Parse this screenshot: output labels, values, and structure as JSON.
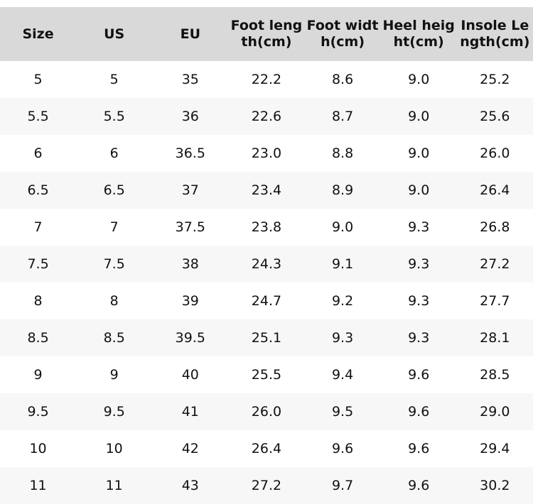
{
  "table": {
    "header": [
      "Size",
      "US",
      "EU",
      "Foot length(cm)",
      "Foot width(cm)",
      "Heel height(cm)",
      "Insole Length(cm)"
    ],
    "rows": [
      [
        "5",
        "5",
        "35",
        "22.2",
        "8.6",
        "9.0",
        "25.2"
      ],
      [
        "5.5",
        "5.5",
        "36",
        "22.6",
        "8.7",
        "9.0",
        "25.6"
      ],
      [
        "6",
        "6",
        "36.5",
        "23.0",
        "8.8",
        "9.0",
        "26.0"
      ],
      [
        "6.5",
        "6.5",
        "37",
        "23.4",
        "8.9",
        "9.0",
        "26.4"
      ],
      [
        "7",
        "7",
        "37.5",
        "23.8",
        "9.0",
        "9.3",
        "26.8"
      ],
      [
        "7.5",
        "7.5",
        "38",
        "24.3",
        "9.1",
        "9.3",
        "27.2"
      ],
      [
        "8",
        "8",
        "39",
        "24.7",
        "9.2",
        "9.3",
        "27.7"
      ],
      [
        "8.5",
        "8.5",
        "39.5",
        "25.1",
        "9.3",
        "9.3",
        "28.1"
      ],
      [
        "9",
        "9",
        "40",
        "25.5",
        "9.4",
        "9.6",
        "28.5"
      ],
      [
        "9.5",
        "9.5",
        "41",
        "26.0",
        "9.5",
        "9.6",
        "29.0"
      ],
      [
        "10",
        "10",
        "42",
        "26.4",
        "9.6",
        "9.6",
        "29.4"
      ],
      [
        "11",
        "11",
        "43",
        "27.2",
        "9.7",
        "9.6",
        "30.2"
      ]
    ]
  }
}
